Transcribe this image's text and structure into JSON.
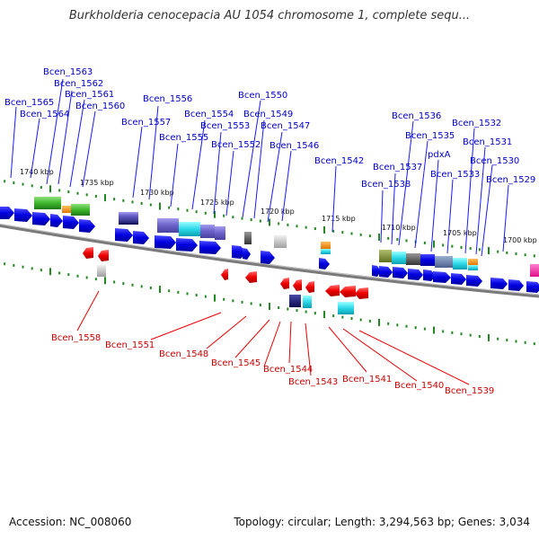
{
  "title": "Burkholderia cenocepacia AU 1054 chromosome 1, complete sequ...",
  "accession": "Accession: NC_008060",
  "summary": "Topology: circular; Length: 3,294,563 bp; Genes: 3,034",
  "scale_labels": [
    "1740 kbp",
    "1735 kbp",
    "1730 kbp",
    "1725 kbp",
    "1720 kbp",
    "1715 kbp",
    "1710 kbp",
    "1705 kbp",
    "1700 kbp"
  ],
  "genes_forward": [
    "Bcen_1565",
    "Bcen_1564",
    "Bcen_1563",
    "Bcen_1562",
    "Bcen_1561",
    "Bcen_1560",
    "Bcen_1557",
    "Bcen_1556",
    "Bcen_1555",
    "Bcen_1554",
    "Bcen_1553",
    "Bcen_1552",
    "Bcen_1550",
    "Bcen_1549",
    "Bcen_1547",
    "Bcen_1546",
    "Bcen_1542",
    "Bcen_1538",
    "Bcen_1537",
    "Bcen_1536",
    "Bcen_1535",
    "pdxA",
    "Bcen_1533",
    "Bcen_1532",
    "Bcen_1531",
    "Bcen_1530",
    "Bcen_1529"
  ],
  "genes_reverse": [
    "Bcen_1558",
    "Bcen_1551",
    "Bcen_1548",
    "Bcen_1545",
    "Bcen_1544",
    "Bcen_1543",
    "Bcen_1541",
    "Bcen_1540",
    "Bcen_1539"
  ],
  "colors": {
    "forward_label": "#0000cc",
    "reverse_label": "#cc0000",
    "forward_gene": "#0000dd",
    "reverse_gene": "#ee0000",
    "backbone": "#777777",
    "tick": "#228822"
  }
}
